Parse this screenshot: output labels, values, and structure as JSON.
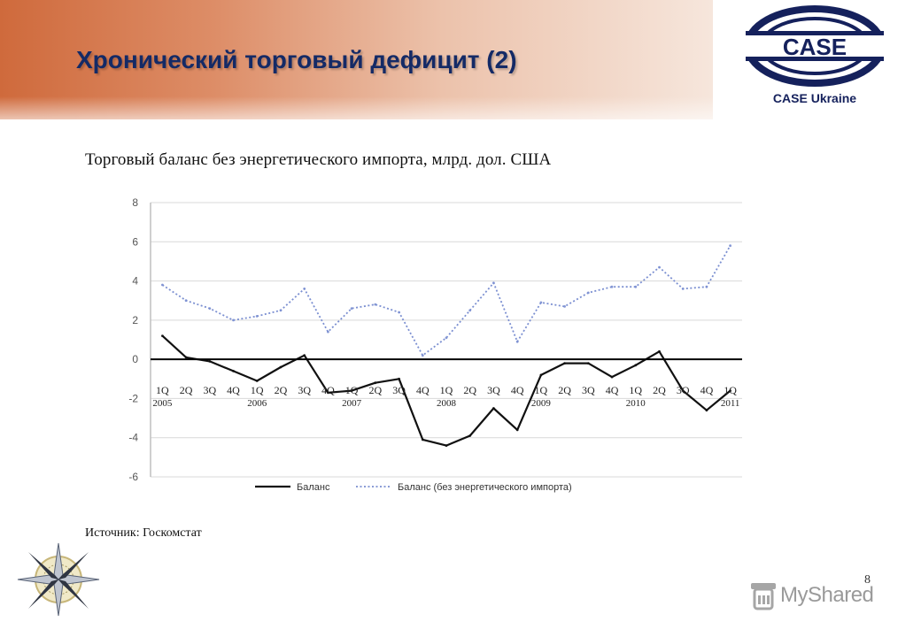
{
  "slide": {
    "title": "Хронический торговый дефицит (2)",
    "source": "Источник: Госкомстат",
    "page_number": "8"
  },
  "logo": {
    "wordmark": "CASE",
    "caption": "CASE Ukraine",
    "color": "#15215c"
  },
  "watermark": {
    "text": "MyShared",
    "icon": "lab-flask-icon"
  },
  "decoration": {
    "icon": "compass-rose-icon"
  },
  "chart_data": {
    "type": "line",
    "title": "Торговый баланс без энергетического импорта, млрд. дол. США",
    "xlabel": "",
    "ylabel": "",
    "ylim": [
      -6,
      8
    ],
    "yticks": [
      "8",
      "6",
      "4",
      "2",
      "0",
      "-2",
      "-4",
      "-6"
    ],
    "categories": [
      "1Q 2005",
      "2Q",
      "3Q",
      "4Q",
      "1Q 2006",
      "2Q",
      "3Q",
      "4Q",
      "1Q 2007",
      "2Q",
      "3Q",
      "4Q",
      "1Q 2008",
      "2Q",
      "3Q",
      "4Q",
      "1Q 2009",
      "2Q",
      "3Q",
      "4Q",
      "1Q 2010",
      "2Q",
      "3Q",
      "4Q",
      "1Q 2011"
    ],
    "tick_quarters": [
      "1Q",
      "2Q",
      "3Q",
      "4Q",
      "1Q",
      "2Q",
      "3Q",
      "4Q",
      "1Q",
      "2Q",
      "3Q",
      "4Q",
      "1Q",
      "2Q",
      "3Q",
      "4Q",
      "1Q",
      "2Q",
      "3Q",
      "4Q",
      "1Q",
      "2Q",
      "3Q",
      "4Q",
      "1Q"
    ],
    "tick_years": [
      "2005",
      "2006",
      "2007",
      "2008",
      "2009",
      "2010",
      "2011"
    ],
    "grid": true,
    "legend_position": "bottom",
    "series": [
      {
        "name": "Баланс",
        "color": "#111111",
        "style": "solid",
        "values": [
          1.2,
          0.1,
          -0.1,
          -0.6,
          -1.1,
          -0.4,
          0.2,
          -1.7,
          -1.6,
          -1.2,
          -1.0,
          -4.1,
          -4.4,
          -3.9,
          -2.5,
          -3.6,
          -0.8,
          -0.2,
          -0.2,
          -0.9,
          -0.3,
          0.4,
          -1.6,
          -2.6,
          -1.6
        ]
      },
      {
        "name": "Баланс (без энергетического импорта)",
        "color": "#7b8fd1",
        "style": "dotted",
        "values": [
          3.8,
          3.0,
          2.6,
          2.0,
          2.2,
          2.5,
          3.6,
          1.4,
          2.6,
          2.8,
          2.4,
          0.2,
          1.1,
          2.5,
          3.9,
          0.9,
          2.9,
          2.7,
          3.4,
          3.7,
          3.7,
          4.7,
          3.6,
          3.7,
          5.8
        ]
      }
    ]
  }
}
